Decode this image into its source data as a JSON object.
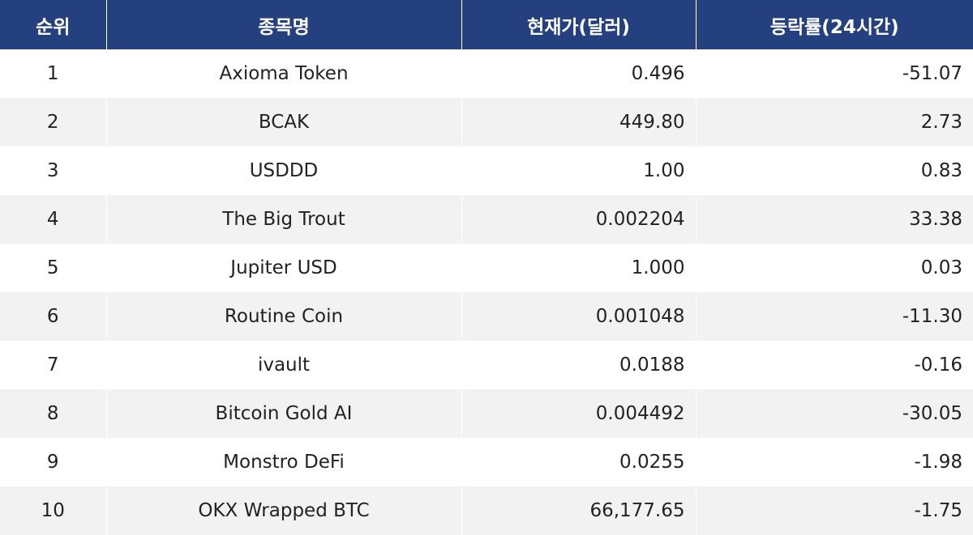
{
  "table": {
    "headers": {
      "rank": "순위",
      "name": "종목명",
      "price": "현재가(달러)",
      "change": "등락률(24시간)"
    },
    "rows": [
      {
        "rank": "1",
        "name": "Axioma Token",
        "price": "0.496",
        "change": "-51.07"
      },
      {
        "rank": "2",
        "name": "BCAK",
        "price": "449.80",
        "change": "2.73"
      },
      {
        "rank": "3",
        "name": "USDDD",
        "price": "1.00",
        "change": "0.83"
      },
      {
        "rank": "4",
        "name": "The Big Trout",
        "price": "0.002204",
        "change": "33.38"
      },
      {
        "rank": "5",
        "name": "Jupiter USD",
        "price": "1.000",
        "change": "0.03"
      },
      {
        "rank": "6",
        "name": "Routine Coin",
        "price": "0.001048",
        "change": "-11.30"
      },
      {
        "rank": "7",
        "name": "ivault",
        "price": "0.0188",
        "change": "-0.16"
      },
      {
        "rank": "8",
        "name": "Bitcoin Gold AI",
        "price": "0.004492",
        "change": "-30.05"
      },
      {
        "rank": "9",
        "name": "Monstro DeFi",
        "price": "0.0255",
        "change": "-1.98"
      },
      {
        "rank": "10",
        "name": "OKX Wrapped BTC",
        "price": "66,177.65",
        "change": "-1.75"
      }
    ]
  },
  "colors": {
    "header_bg": "#25407f",
    "header_text": "#ffffff",
    "row_alt_bg": "#f2f2f2"
  }
}
